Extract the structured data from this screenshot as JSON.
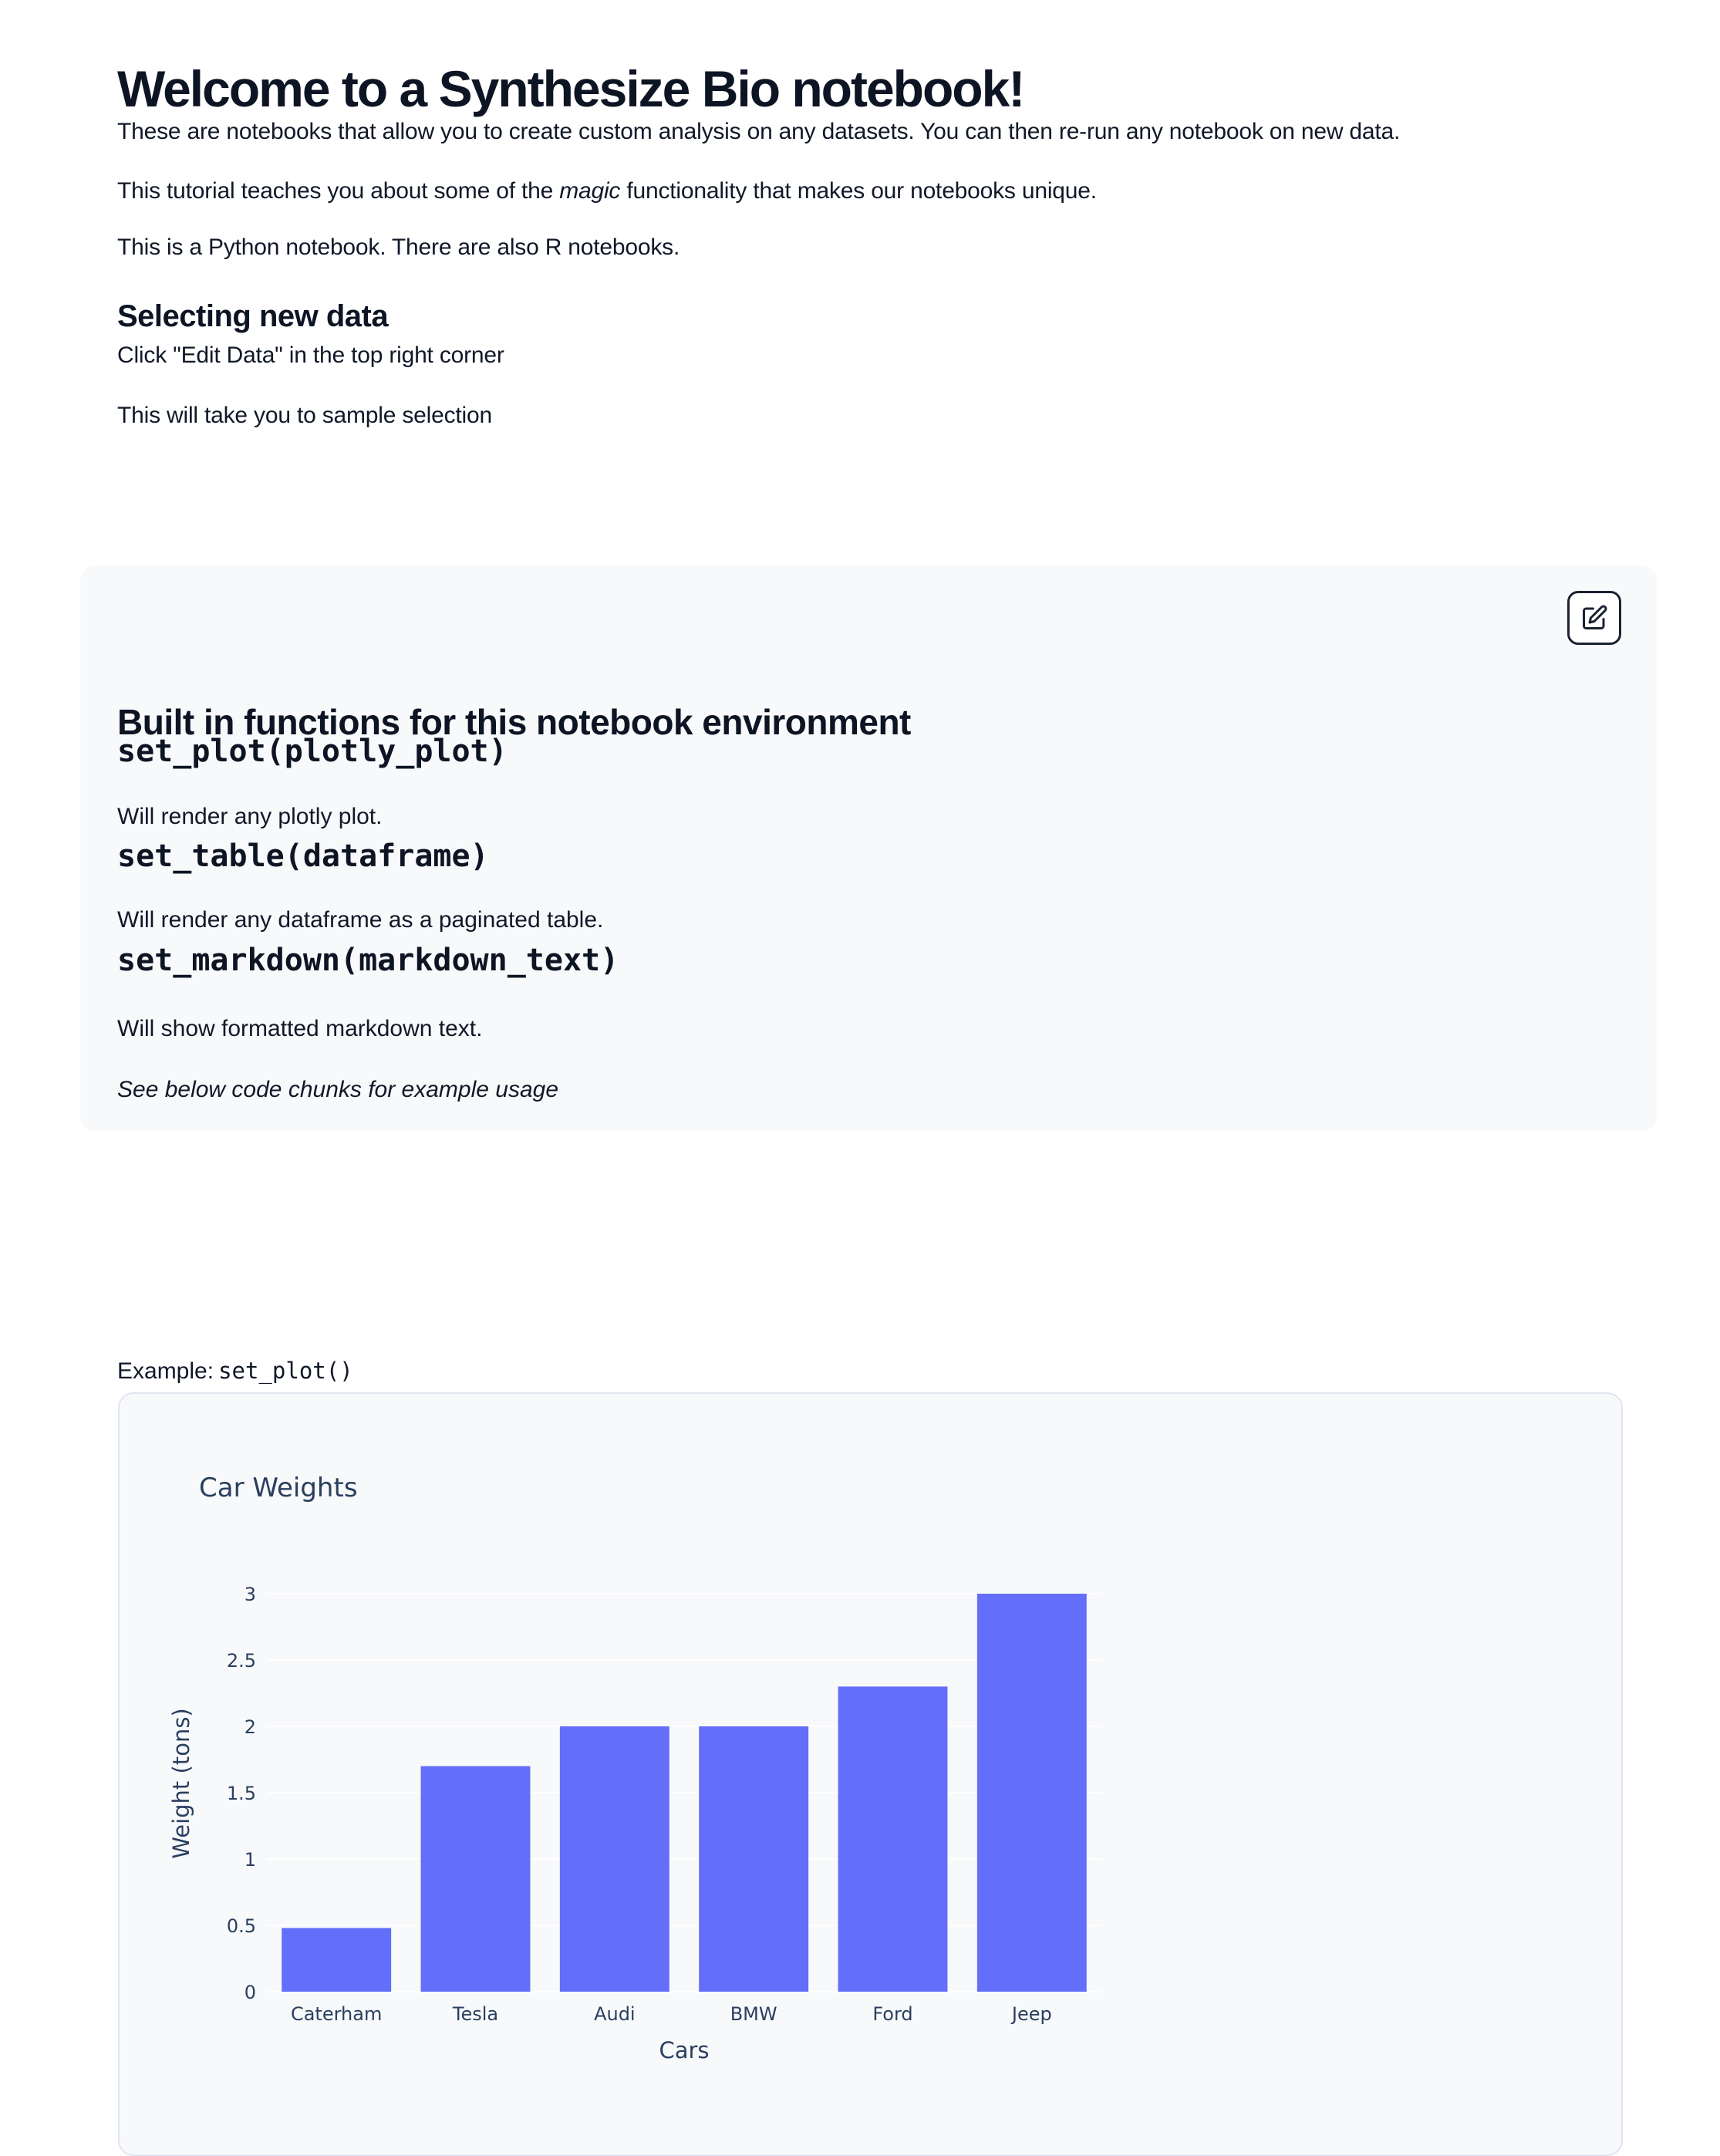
{
  "page": {
    "title": "Welcome to a Synthesize Bio notebook!",
    "intro_paragraphs": [
      "These are notebooks that allow you to create custom analysis on any datasets. You can then re-run any notebook on new data.",
      "This is a Python notebook. There are also R notebooks."
    ],
    "intro_rich": {
      "before_em": "This tutorial teaches you about some of the ",
      "em": "magic",
      "after_em": " functionality that makes our notebooks unique."
    }
  },
  "selecting_section": {
    "heading": "Selecting new data",
    "paragraphs": [
      "Click \"Edit Data\" in the top right corner",
      "This will take you to sample selection"
    ]
  },
  "functions_panel": {
    "heading": "Built in functions for this notebook environment",
    "edit_icon": "pencil-square-icon",
    "functions": [
      {
        "signature": "set_plot(plotly_plot)",
        "description": "Will render any plotly plot."
      },
      {
        "signature": "set_table(dataframe)",
        "description": "Will render any dataframe as a paginated table."
      },
      {
        "signature": "set_markdown(markdown_text)",
        "description": "Will show formatted markdown text."
      }
    ],
    "note": "See below code chunks for example usage"
  },
  "example_caption": {
    "label": "Example:",
    "code": "set_plot()"
  },
  "chart_data": {
    "type": "bar",
    "title": "Car Weights",
    "categories": [
      "Caterham",
      "Tesla",
      "Audi",
      "BMW",
      "Ford",
      "Jeep"
    ],
    "values": [
      0.48,
      1.7,
      2,
      2,
      2.3,
      3
    ],
    "xlabel": "Cars",
    "ylabel": "Weight (tons)",
    "yticks": [
      0,
      0.5,
      1,
      1.5,
      2,
      2.5,
      3
    ],
    "ylim": [
      0,
      3.15
    ],
    "grid": true,
    "legend_position": "none",
    "bar_color": "#636EFA",
    "label_color": "#2a3f5f",
    "grid_color": "#ffffff",
    "plot_background": "#f8f9fb"
  }
}
